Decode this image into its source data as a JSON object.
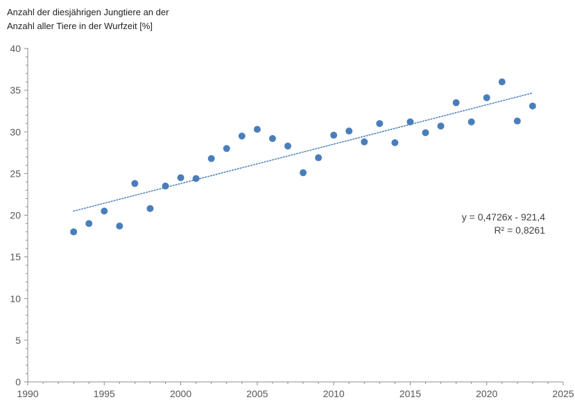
{
  "chart_data": {
    "type": "scatter",
    "ylabel_lines": [
      "Anzahl der diesjährigen Jungtiere an der",
      "Anzahl aller Tiere in der Wurfzeit [%]"
    ],
    "xlabel": "",
    "xlim": [
      1990,
      2025
    ],
    "ylim": [
      0,
      40
    ],
    "x_ticks": [
      1990,
      1995,
      2000,
      2005,
      2010,
      2015,
      2020,
      2025
    ],
    "y_ticks": [
      0,
      5,
      10,
      15,
      20,
      25,
      30,
      35,
      40
    ],
    "grid": false,
    "series": [
      {
        "x": [
          1993,
          1994,
          1995,
          1996,
          1997,
          1998,
          1999,
          2000,
          2001,
          2002,
          2003,
          2004,
          2005,
          2006,
          2007,
          2008,
          2009,
          2010,
          2011,
          2012,
          2013,
          2014,
          2015,
          2016,
          2017,
          2018,
          2019,
          2020,
          2021,
          2022,
          2023
        ],
        "y": [
          18.0,
          19.0,
          20.5,
          18.7,
          23.8,
          20.8,
          23.5,
          24.5,
          24.4,
          26.8,
          28.0,
          29.5,
          30.3,
          29.2,
          28.3,
          25.1,
          26.9,
          29.6,
          30.1,
          28.8,
          31.0,
          28.7,
          31.2,
          29.9,
          30.7,
          33.5,
          31.2,
          34.1,
          36.0,
          31.3,
          33.1
        ],
        "color": "#4a7ebb"
      }
    ],
    "trendline": {
      "type": "linear",
      "slope": 0.4726,
      "intercept": -921.4,
      "x_range": [
        1993,
        2023
      ],
      "style": "dotted",
      "color": "#4a7ebb",
      "equation_text": "y = 0,4726x - 921,4",
      "r2_text": "R² = 0,8261"
    }
  }
}
